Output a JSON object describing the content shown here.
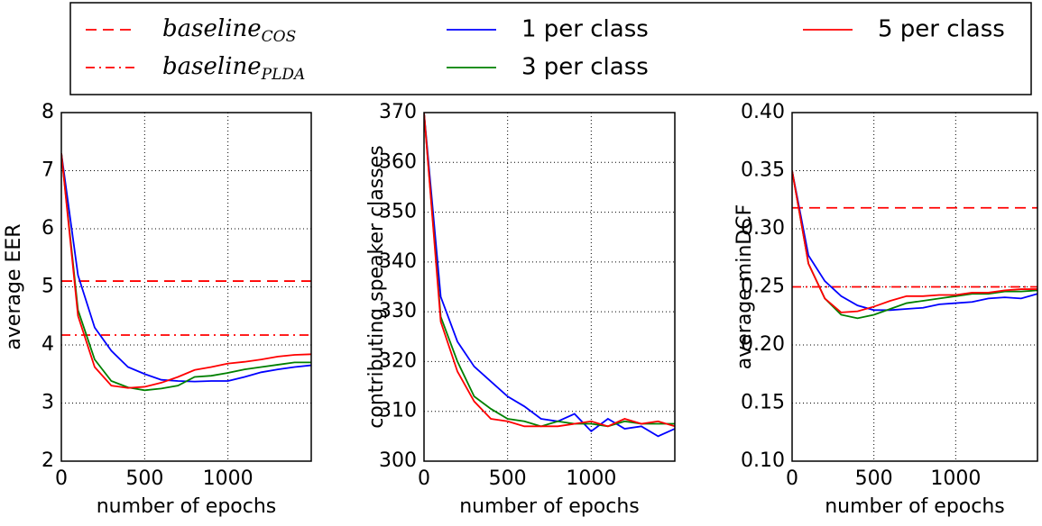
{
  "legend_columns": 3,
  "chart_data": [
    {
      "type": "line",
      "ylabel": "average EER",
      "xlabel": "number of epochs",
      "x": [
        0,
        100,
        200,
        300,
        400,
        500,
        600,
        700,
        800,
        900,
        1000,
        1100,
        1200,
        1300,
        1400,
        1500
      ],
      "xlim": [
        0,
        1500
      ],
      "xticks": [
        0,
        500,
        1000
      ],
      "ylim": [
        2,
        8
      ],
      "yticks": [
        2,
        3,
        4,
        5,
        6,
        7,
        8
      ],
      "grid": true,
      "hlines": [
        {
          "name": "baseline",
          "name_sub": "COS",
          "value": 5.1,
          "color": "#ff0000",
          "dash": "dashed"
        },
        {
          "name": "baseline",
          "name_sub": "PLDA",
          "value": 4.17,
          "color": "#ff0000",
          "dash": "dashdot"
        }
      ],
      "series": [
        {
          "name": "1 per class",
          "color": "#0000ff",
          "values": [
            7.3,
            5.2,
            4.3,
            3.9,
            3.62,
            3.5,
            3.4,
            3.38,
            3.37,
            3.38,
            3.38,
            3.45,
            3.53,
            3.58,
            3.62,
            3.65
          ]
        },
        {
          "name": "3 per class",
          "color": "#008000",
          "values": [
            7.3,
            4.6,
            3.75,
            3.38,
            3.27,
            3.22,
            3.25,
            3.3,
            3.45,
            3.47,
            3.52,
            3.58,
            3.62,
            3.66,
            3.7,
            3.7
          ]
        },
        {
          "name": "5 per class",
          "color": "#ff0000",
          "values": [
            7.3,
            4.5,
            3.62,
            3.3,
            3.26,
            3.28,
            3.35,
            3.45,
            3.57,
            3.62,
            3.68,
            3.71,
            3.75,
            3.8,
            3.83,
            3.84
          ]
        }
      ]
    },
    {
      "type": "line",
      "ylabel": "contributing speaker classes",
      "xlabel": "number of epochs",
      "x": [
        0,
        100,
        200,
        300,
        400,
        500,
        600,
        700,
        800,
        900,
        1000,
        1100,
        1200,
        1300,
        1400,
        1500
      ],
      "xlim": [
        0,
        1500
      ],
      "xticks": [
        0,
        500,
        1000
      ],
      "ylim": [
        300,
        370
      ],
      "yticks": [
        300,
        310,
        320,
        330,
        340,
        350,
        360,
        370
      ],
      "grid": true,
      "hlines": [],
      "series": [
        {
          "name": "1 per class",
          "color": "#0000ff",
          "values": [
            370,
            333,
            324,
            319,
            316,
            313,
            311,
            308.5,
            308,
            309.5,
            306,
            308.5,
            306.5,
            307,
            305,
            306.5
          ]
        },
        {
          "name": "3 per class",
          "color": "#008000",
          "values": [
            370,
            329,
            320,
            313,
            310.5,
            308.5,
            308,
            307,
            308,
            307.5,
            307.5,
            307,
            308,
            307.5,
            307.5,
            307.5
          ]
        },
        {
          "name": "5 per class",
          "color": "#ff0000",
          "values": [
            370,
            328,
            318,
            312,
            308.5,
            308,
            307,
            307,
            307,
            307.5,
            308,
            307,
            308.5,
            307.5,
            308,
            307
          ]
        }
      ]
    },
    {
      "type": "line",
      "ylabel": "average minDCF",
      "xlabel": "number of epochs",
      "x": [
        0,
        100,
        200,
        300,
        400,
        500,
        600,
        700,
        800,
        900,
        1000,
        1100,
        1200,
        1300,
        1400,
        1500
      ],
      "xlim": [
        0,
        1500
      ],
      "xticks": [
        0,
        500,
        1000
      ],
      "ylim": [
        0.1,
        0.4
      ],
      "yticks": [
        {
          "value": 0.1,
          "label": "0.10"
        },
        0.15,
        {
          "value": 0.2,
          "label": "0.20"
        },
        0.25,
        {
          "value": 0.3,
          "label": "0.30"
        },
        0.35,
        {
          "value": 0.4,
          "label": "0.40"
        }
      ],
      "grid": true,
      "hlines": [
        {
          "name": "baseline",
          "name_sub": "COS",
          "value": 0.318,
          "color": "#ff0000",
          "dash": "dashed"
        },
        {
          "name": "baseline",
          "name_sub": "PLDA",
          "value": 0.25,
          "color": "#ff0000",
          "dash": "dashdot"
        }
      ],
      "series": [
        {
          "name": "1 per class",
          "color": "#0000ff",
          "values": [
            0.35,
            0.277,
            0.255,
            0.242,
            0.234,
            0.23,
            0.23,
            0.231,
            0.232,
            0.235,
            0.236,
            0.237,
            0.24,
            0.241,
            0.24,
            0.244
          ]
        },
        {
          "name": "3 per class",
          "color": "#008000",
          "values": [
            0.35,
            0.27,
            0.24,
            0.226,
            0.223,
            0.226,
            0.231,
            0.236,
            0.238,
            0.24,
            0.242,
            0.244,
            0.244,
            0.246,
            0.246,
            0.247
          ]
        },
        {
          "name": "5 per class",
          "color": "#ff0000",
          "values": [
            0.35,
            0.27,
            0.24,
            0.228,
            0.229,
            0.233,
            0.238,
            0.242,
            0.242,
            0.243,
            0.243,
            0.245,
            0.245,
            0.247,
            0.248,
            0.248
          ]
        }
      ]
    }
  ]
}
